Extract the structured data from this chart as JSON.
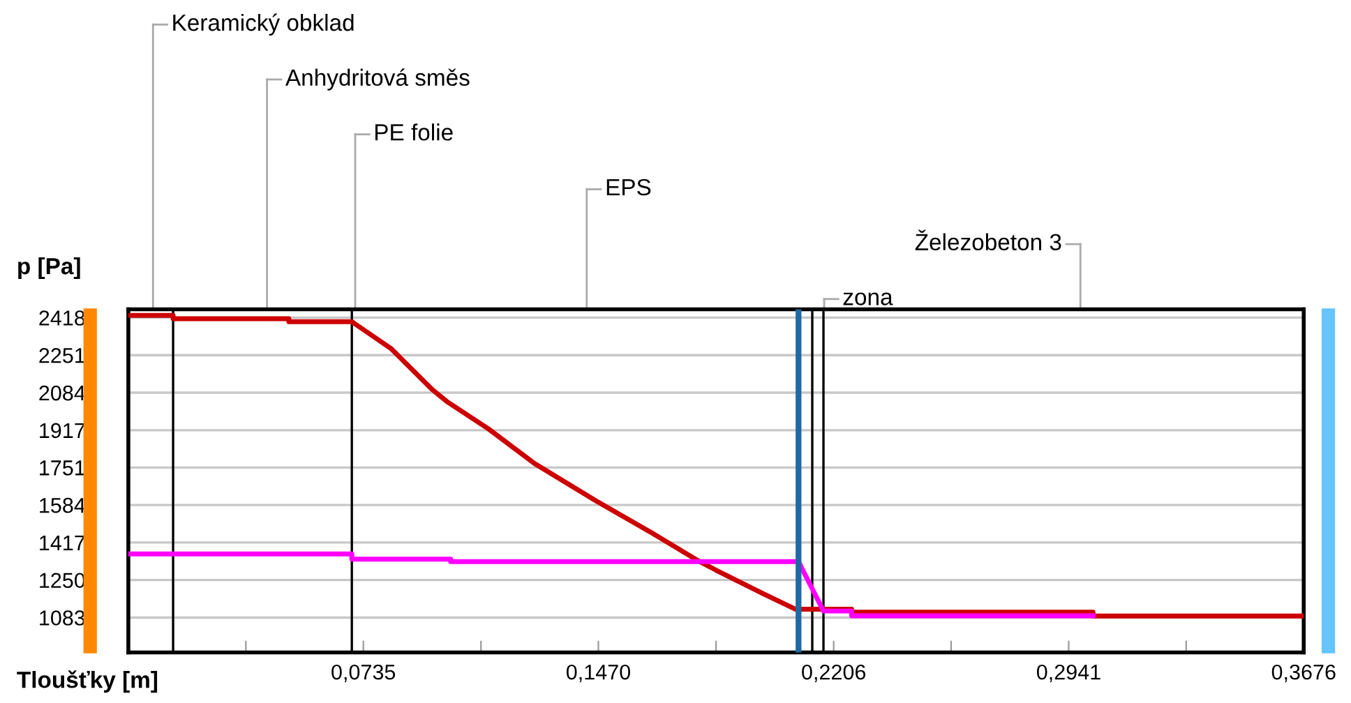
{
  "chart_data": {
    "type": "line",
    "ylabel": "p [Pa]",
    "xlabel": "Tloušťky [m]",
    "xlim": [
      0,
      0.3676
    ],
    "ylim": [
      928,
      2455
    ],
    "xticks": [
      {
        "value": 0.03676,
        "label": null
      },
      {
        "value": 0.0735,
        "label": "0,0735"
      },
      {
        "value": 0.11028,
        "label": null
      },
      {
        "value": 0.147,
        "label": "0,1470"
      },
      {
        "value": 0.1838,
        "label": null
      },
      {
        "value": 0.2206,
        "label": "0,2206"
      },
      {
        "value": 0.25732,
        "label": null
      },
      {
        "value": 0.2941,
        "label": "0,2941"
      },
      {
        "value": 0.33084,
        "label": null
      },
      {
        "value": 0.3676,
        "label": "0,3676"
      }
    ],
    "yticks": [
      1083,
      1250,
      1417,
      1584,
      1751,
      1917,
      2084,
      2251,
      2418
    ],
    "grid": "y",
    "legend": false,
    "marker": "none",
    "line_style": "solid",
    "series": [
      {
        "color": "#cc0000",
        "x": [
          0,
          0.014,
          0.014,
          0.0502,
          0.0502,
          0.0699,
          0.0821,
          0.0952,
          0.0995,
          0.1126,
          0.127,
          0.1463,
          0.1637,
          0.1781,
          0.1838,
          0.1987,
          0.2087,
          0.2262,
          0.2262,
          0.3017,
          0.3017,
          0.3676
        ],
        "values": [
          2428,
          2428,
          2413,
          2413,
          2400,
          2400,
          2281,
          2096,
          2046,
          1923,
          1769,
          1602,
          1460,
          1337,
          1294,
          1188,
          1120,
          1120,
          1107,
          1107,
          1090,
          1090
        ]
      },
      {
        "color": "#ff00ff",
        "x": [
          0,
          0.0699,
          0.0699,
          0.1008,
          0.1008,
          0.2096,
          0.2174,
          0.2262,
          0.2262,
          0.3017
        ],
        "values": [
          1366,
          1366,
          1343,
          1343,
          1332,
          1332,
          1112,
          1112,
          1091,
          1091
        ]
      }
    ],
    "ref_lines": [
      {
        "axis": "x",
        "value": 0.014,
        "color": "#000000"
      },
      {
        "axis": "x",
        "value": 0.0699,
        "color": "#000000"
      },
      {
        "axis": "x",
        "value": 0.2139,
        "color": "#000000"
      },
      {
        "axis": "x",
        "value": 0.2174,
        "color": "#000000"
      },
      {
        "axis": "x",
        "value": 0.2096,
        "color": "#1f6aa5"
      }
    ],
    "annotations": [
      "Keramický obklad",
      "Anhydritová směs",
      "PE folie",
      "EPS",
      "Železobeton 3",
      "zona"
    ]
  }
}
